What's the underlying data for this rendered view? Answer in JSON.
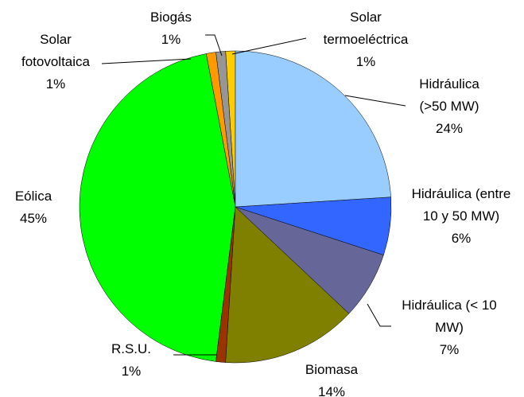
{
  "chart_data": {
    "type": "pie",
    "categories": [
      "Hidráulica (>50 MW)",
      "Hidráulica (entre 10 y 50 MW)",
      "Hidráulica (< 10 MW)",
      "Biomasa",
      "R.S.U.",
      "Eólica",
      "Solar fotovoltaica",
      "Biogás",
      "Solar termoeléctrica"
    ],
    "values": [
      24,
      6,
      7,
      14,
      1,
      45,
      1,
      1,
      1
    ],
    "value_labels": [
      "24%",
      "6%",
      "7%",
      "14%",
      "1%",
      "45%",
      "1%",
      "1%",
      "1%"
    ],
    "colors": [
      "#99ccff",
      "#3366ff",
      "#666699",
      "#808000",
      "#993300",
      "#00ff00",
      "#ff9900",
      "#969696",
      "#ffcc00"
    ]
  }
}
